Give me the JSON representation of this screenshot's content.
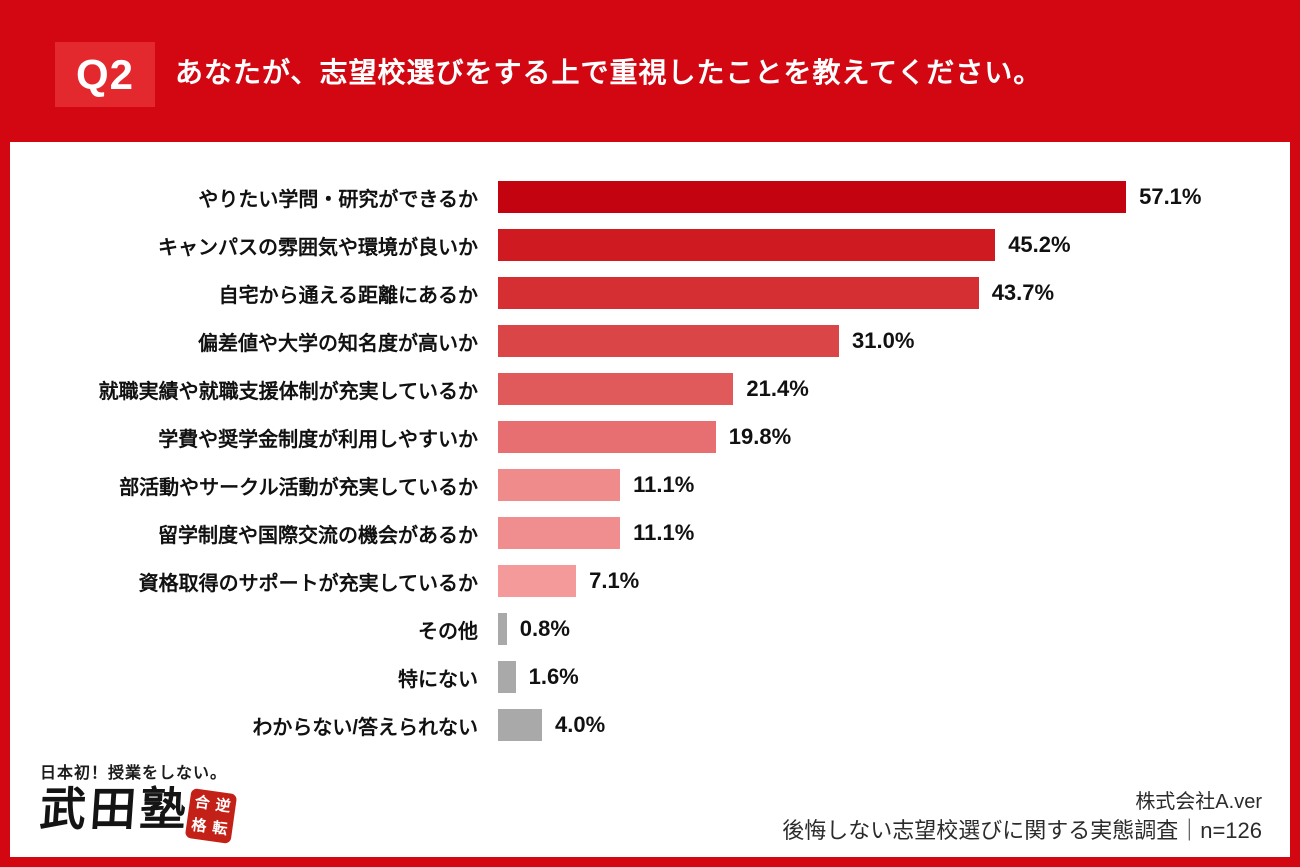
{
  "header": {
    "q_label": "Q2",
    "title": "あなたが、志望校選びをする上で重視したことを教えてください。"
  },
  "chart_data": {
    "type": "bar",
    "orientation": "horizontal",
    "title": "あなたが、志望校選びをする上で重視したことを教えてください。",
    "xlabel": "",
    "ylabel": "",
    "xlim": [
      0,
      60
    ],
    "grid": false,
    "legend": false,
    "unit": "%",
    "categories": [
      "やりたい学問・研究ができるか",
      "キャンパスの雰囲気や環境が良いか",
      "自宅から通える距離にあるか",
      "偏差値や大学の知名度が高いか",
      "就職実績や就職支援体制が充実しているか",
      "学費や奨学金制度が利用しやすいか",
      "部活動やサークル活動が充実しているか",
      "留学制度や国際交流の機会があるか",
      "資格取得のサポートが充実しているか",
      "その他",
      "特にない",
      "わからない/答えられない"
    ],
    "values": [
      57.1,
      45.2,
      43.7,
      31.0,
      21.4,
      19.8,
      11.1,
      11.1,
      7.1,
      0.8,
      1.6,
      4.0
    ],
    "value_labels": [
      "57.1%",
      "45.2%",
      "43.7%",
      "31.0%",
      "21.4%",
      "19.8%",
      "11.1%",
      "11.1%",
      "7.1%",
      "0.8%",
      "1.6%",
      "4.0%"
    ],
    "bar_colors": [
      "#c40310",
      "#d01a21",
      "#d52f33",
      "#da4547",
      "#e05a5c",
      "#e76f71",
      "#f08b8c",
      "#f08d8e",
      "#f49a9a",
      "#a9a9a9",
      "#a9a9a9",
      "#a9a9a9"
    ]
  },
  "footer": {
    "logo": {
      "tagline": "日本初！授業をしない。",
      "brand": "武田塾",
      "stamp_text": "逆転合格",
      "stamp_grid": [
        "合",
        "逆",
        "格",
        "転"
      ]
    },
    "source": {
      "company": "株式会社A.ver",
      "survey": "後悔しない志望校選びに関する実態調査｜n=126"
    }
  },
  "colors": {
    "background": "#d20712",
    "q_box": "#e3282e",
    "card": "#ffffff",
    "label_text": "#111111",
    "value_text": "#111111",
    "stamp": "#c32117"
  }
}
